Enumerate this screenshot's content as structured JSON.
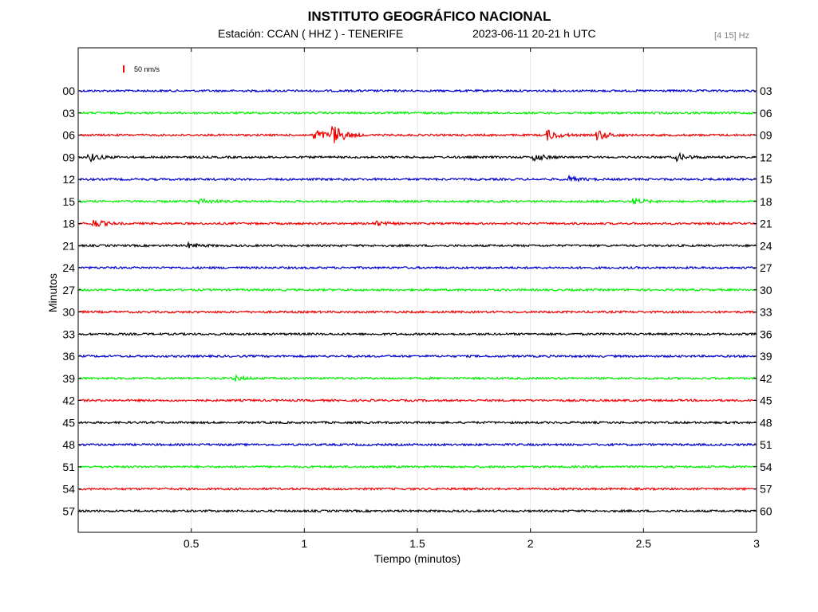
{
  "header": {
    "title": "INSTITUTO GEOGRÁFICO NACIONAL",
    "station": "Estación:  CCAN ( HHZ ) - TENERIFE",
    "date": "2023-06-11  20-21 h UTC",
    "filter": "[4 15] Hz"
  },
  "chart_data": {
    "type": "line",
    "title": "INSTITUTO GEOGRÁFICO NACIONAL",
    "xlabel": "Tiempo (minutos)",
    "ylabel": "Minutos",
    "xlim": [
      0,
      3
    ],
    "x_ticks": [
      "0.5",
      "1",
      "1.5",
      "2",
      "2.5",
      "3"
    ],
    "x_tick_values": [
      0.5,
      1,
      1.5,
      2,
      2.5,
      3
    ],
    "y_ticks_left": [
      "00",
      "03",
      "06",
      "09",
      "12",
      "15",
      "18",
      "21",
      "24",
      "27",
      "30",
      "33",
      "36",
      "39",
      "42",
      "45",
      "48",
      "51",
      "54",
      "57"
    ],
    "y_ticks_right": [
      "03",
      "06",
      "09",
      "12",
      "15",
      "18",
      "21",
      "24",
      "27",
      "30",
      "33",
      "36",
      "39",
      "42",
      "45",
      "48",
      "51",
      "54",
      "57",
      "60"
    ],
    "scale_bar_label": "50 nm/s",
    "scale_bar_color": "#ff0000",
    "grid": true,
    "trace_colors": [
      "#0000cc",
      "#00ee00",
      "#ee0000",
      "#000000"
    ],
    "events": [
      {
        "trace": 2,
        "times": [
          1.05,
          1.13,
          2.08,
          2.3
        ],
        "amplitudes": [
          0.6,
          1.0,
          0.5,
          0.5
        ]
      },
      {
        "trace": 3,
        "times": [
          0.05,
          2.02,
          2.65
        ],
        "amplitudes": [
          0.4,
          0.35,
          0.35
        ]
      },
      {
        "trace": 4,
        "times": [
          2.17
        ],
        "amplitudes": [
          0.25
        ]
      },
      {
        "trace": 5,
        "times": [
          0.54,
          2.46
        ],
        "amplitudes": [
          0.3,
          0.3
        ]
      },
      {
        "trace": 6,
        "times": [
          0.07,
          1.31
        ],
        "amplitudes": [
          0.4,
          0.25
        ]
      },
      {
        "trace": 7,
        "times": [
          0.49
        ],
        "amplitudes": [
          0.2
        ]
      },
      {
        "trace": 13,
        "times": [
          0.69
        ],
        "amplitudes": [
          0.25
        ]
      }
    ]
  }
}
